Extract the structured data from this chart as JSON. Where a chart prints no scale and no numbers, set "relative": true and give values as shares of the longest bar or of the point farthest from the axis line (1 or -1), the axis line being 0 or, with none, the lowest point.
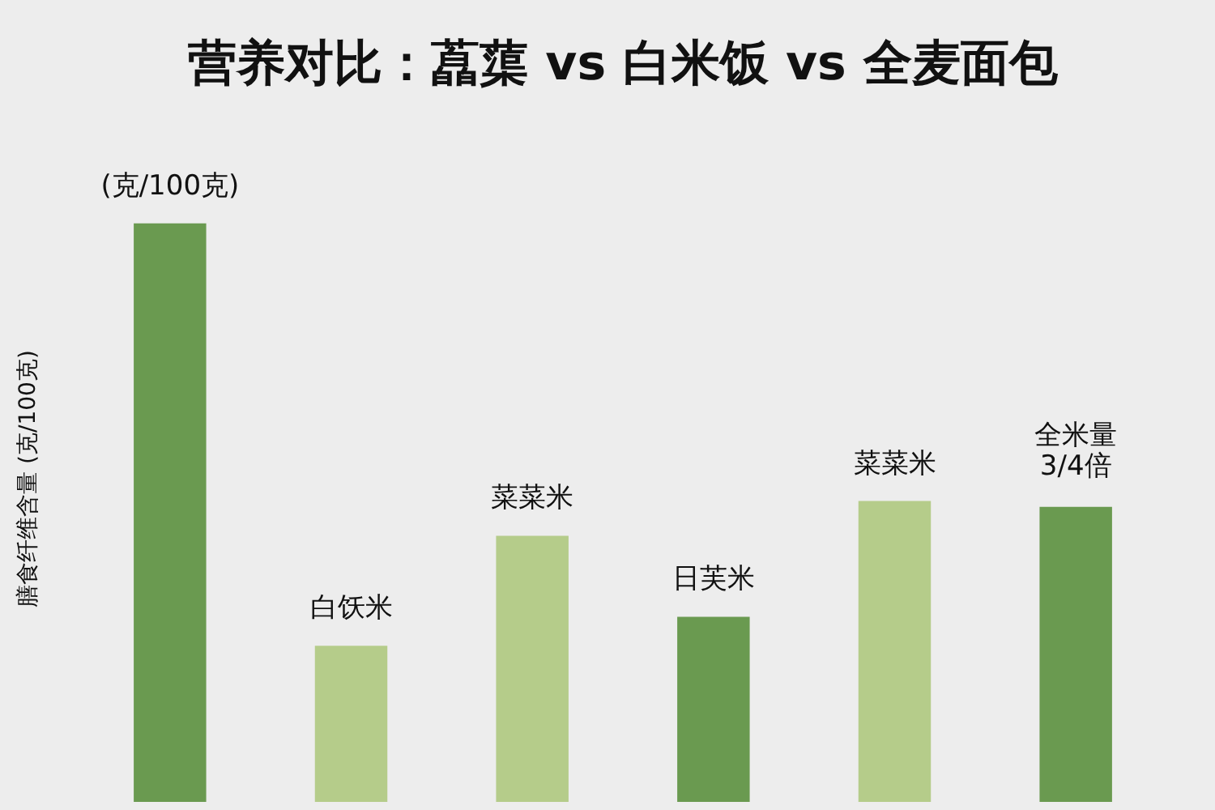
{
  "chart_data": {
    "type": "bar",
    "title": "营养对比：藠蕖 vs 白米饭 vs 全麦面包",
    "ylabel": "膳食纤维含量 (克/100克)",
    "relative": true,
    "categories": [
      null,
      null,
      null,
      null,
      null,
      null
    ],
    "values": [
      1,
      0.27,
      0.46,
      0.32,
      0.52,
      0.51
    ],
    "colors": [
      "#6a9a50",
      "#b5cc8a",
      "#b5cc8a",
      "#6a9a50",
      "#b5cc8a",
      "#6a9a50"
    ],
    "annotations": [
      "(克/100克)",
      "白饫米",
      "菜菜米",
      "日芙米",
      "菜菜米",
      "全米量\n3/4倍"
    ],
    "grid": false
  }
}
